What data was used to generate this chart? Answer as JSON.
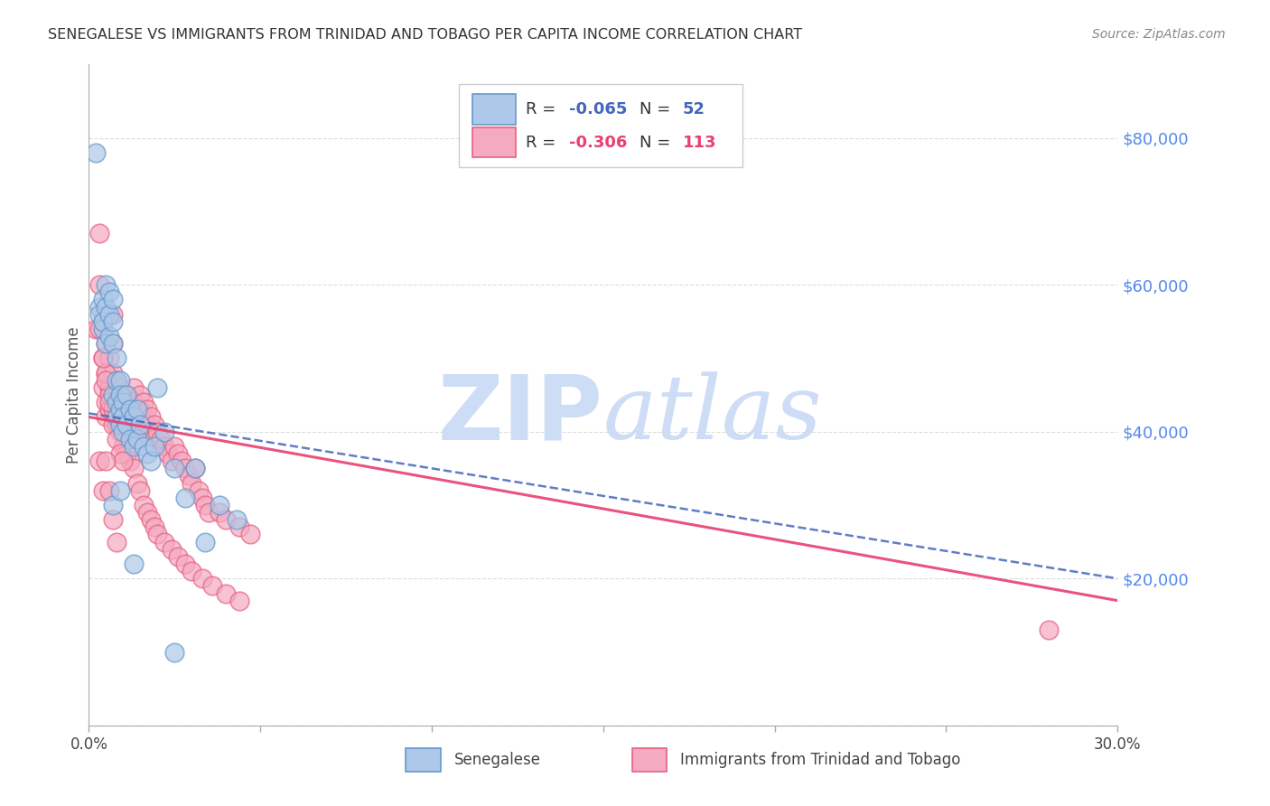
{
  "title": "SENEGALESE VS IMMIGRANTS FROM TRINIDAD AND TOBAGO PER CAPITA INCOME CORRELATION CHART",
  "source": "Source: ZipAtlas.com",
  "ylabel": "Per Capita Income",
  "xlim": [
    0,
    0.3
  ],
  "ylim": [
    0,
    90000
  ],
  "yticks": [
    0,
    20000,
    40000,
    60000,
    80000
  ],
  "ytick_labels": [
    "",
    "$20,000",
    "$40,000",
    "$60,000",
    "$80,000"
  ],
  "xtick_positions": [
    0.0,
    0.05,
    0.1,
    0.15,
    0.2,
    0.25,
    0.3
  ],
  "blue_R": -0.065,
  "blue_N": 52,
  "pink_R": -0.306,
  "pink_N": 113,
  "blue_color": "#adc8e8",
  "pink_color": "#f4aac0",
  "blue_edge_color": "#6699cc",
  "pink_edge_color": "#e86080",
  "blue_line_color": "#4466bb",
  "pink_line_color": "#e84070",
  "watermark": "ZIPatlas",
  "watermark_color": "#ccddf5",
  "background_color": "#ffffff",
  "grid_color": "#dddddd",
  "right_axis_color": "#5588ee",
  "blue_trend_x": [
    0.0,
    0.3
  ],
  "blue_trend_y": [
    42500,
    20000
  ],
  "pink_trend_x": [
    0.0,
    0.3
  ],
  "pink_trend_y": [
    42000,
    17000
  ],
  "blue_scatter_x": [
    0.002,
    0.003,
    0.003,
    0.004,
    0.004,
    0.004,
    0.005,
    0.005,
    0.005,
    0.006,
    0.006,
    0.006,
    0.007,
    0.007,
    0.007,
    0.007,
    0.008,
    0.008,
    0.008,
    0.008,
    0.009,
    0.009,
    0.009,
    0.009,
    0.01,
    0.01,
    0.01,
    0.011,
    0.011,
    0.012,
    0.012,
    0.013,
    0.013,
    0.014,
    0.014,
    0.015,
    0.016,
    0.017,
    0.018,
    0.019,
    0.02,
    0.022,
    0.025,
    0.028,
    0.031,
    0.034,
    0.038,
    0.043,
    0.007,
    0.009,
    0.013,
    0.025
  ],
  "blue_scatter_y": [
    78000,
    57000,
    56000,
    54000,
    58000,
    55000,
    60000,
    57000,
    52000,
    56000,
    53000,
    59000,
    58000,
    55000,
    52000,
    45000,
    50000,
    47000,
    44000,
    42000,
    47000,
    45000,
    43000,
    41000,
    44000,
    42000,
    40000,
    45000,
    41000,
    43000,
    39000,
    42000,
    38000,
    43000,
    39000,
    41000,
    38000,
    37000,
    36000,
    38000,
    46000,
    40000,
    35000,
    31000,
    35000,
    25000,
    30000,
    28000,
    30000,
    32000,
    22000,
    10000
  ],
  "pink_scatter_x": [
    0.002,
    0.003,
    0.003,
    0.004,
    0.004,
    0.004,
    0.005,
    0.005,
    0.005,
    0.005,
    0.006,
    0.006,
    0.006,
    0.007,
    0.007,
    0.007,
    0.007,
    0.008,
    0.008,
    0.008,
    0.008,
    0.009,
    0.009,
    0.009,
    0.009,
    0.01,
    0.01,
    0.01,
    0.01,
    0.011,
    0.011,
    0.011,
    0.012,
    0.012,
    0.012,
    0.013,
    0.013,
    0.013,
    0.014,
    0.014,
    0.014,
    0.015,
    0.015,
    0.015,
    0.016,
    0.016,
    0.016,
    0.017,
    0.017,
    0.018,
    0.018,
    0.019,
    0.019,
    0.02,
    0.021,
    0.022,
    0.023,
    0.024,
    0.025,
    0.026,
    0.027,
    0.028,
    0.029,
    0.03,
    0.031,
    0.032,
    0.033,
    0.034,
    0.035,
    0.038,
    0.04,
    0.044,
    0.047,
    0.005,
    0.006,
    0.007,
    0.008,
    0.009,
    0.01,
    0.011,
    0.012,
    0.013,
    0.014,
    0.015,
    0.016,
    0.017,
    0.018,
    0.019,
    0.02,
    0.022,
    0.024,
    0.026,
    0.028,
    0.03,
    0.033,
    0.036,
    0.04,
    0.044,
    0.003,
    0.004,
    0.005,
    0.006,
    0.007,
    0.008,
    0.009,
    0.01,
    0.003,
    0.004,
    0.28,
    0.005,
    0.006,
    0.007,
    0.008
  ],
  "pink_scatter_y": [
    54000,
    67000,
    60000,
    56000,
    50000,
    46000,
    52000,
    48000,
    44000,
    42000,
    50000,
    46000,
    43000,
    56000,
    52000,
    48000,
    44000,
    47000,
    44000,
    43000,
    41000,
    46000,
    44000,
    43000,
    41000,
    45000,
    44000,
    42000,
    40000,
    45000,
    43000,
    41000,
    44000,
    42000,
    40000,
    46000,
    44000,
    42000,
    43000,
    41000,
    39000,
    45000,
    43000,
    41000,
    44000,
    42000,
    40000,
    43000,
    41000,
    42000,
    40000,
    41000,
    39000,
    40000,
    39000,
    38000,
    37000,
    36000,
    38000,
    37000,
    36000,
    35000,
    34000,
    33000,
    35000,
    32000,
    31000,
    30000,
    29000,
    29000,
    28000,
    27000,
    26000,
    48000,
    45000,
    43000,
    41000,
    40000,
    38000,
    37000,
    36000,
    35000,
    33000,
    32000,
    30000,
    29000,
    28000,
    27000,
    26000,
    25000,
    24000,
    23000,
    22000,
    21000,
    20000,
    19000,
    18000,
    17000,
    54000,
    50000,
    47000,
    44000,
    41000,
    39000,
    37000,
    36000,
    36000,
    32000,
    13000,
    36000,
    32000,
    28000,
    25000
  ]
}
